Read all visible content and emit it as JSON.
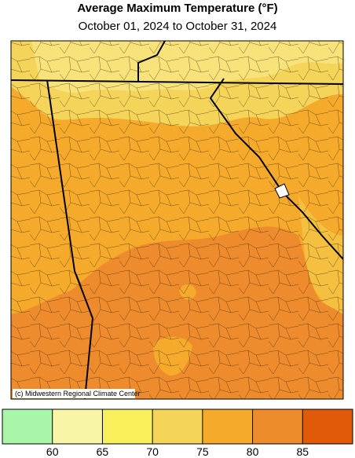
{
  "header": {
    "title": "Average Maximum Temperature (°F)",
    "subtitle": "October 01, 2024 to October 31, 2024"
  },
  "map": {
    "credit": "(c) Midwestern Regional Climate Center"
  },
  "legend": {
    "colors": [
      "#a9f5a9",
      "#f8f5a6",
      "#f7ef5c",
      "#f5d45a",
      "#f5aa2c",
      "#ee8b2c",
      "#e05a0a"
    ],
    "ticks": [
      60,
      65,
      70,
      75,
      80,
      85
    ]
  }
}
